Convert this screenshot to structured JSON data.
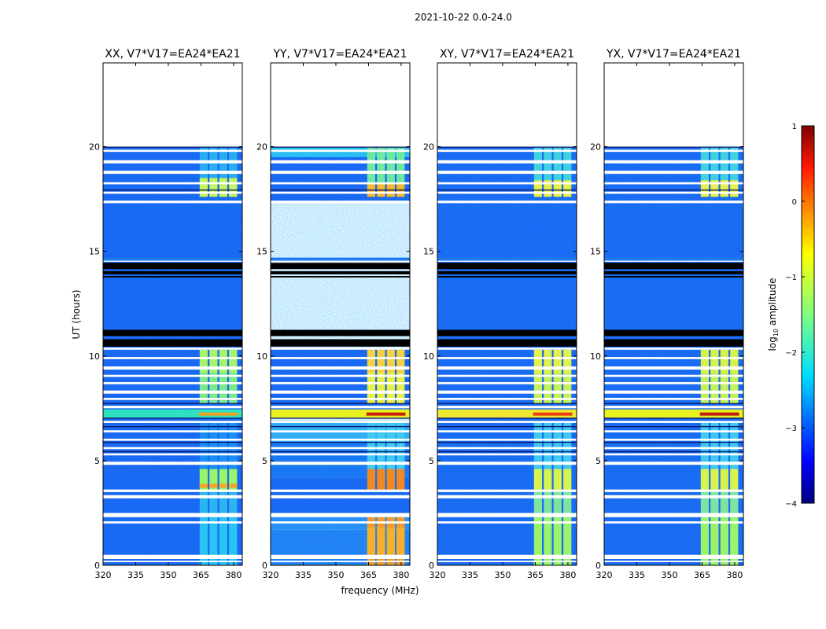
{
  "chart_data": {
    "type": "heatmap",
    "suptitle": "2021-10-22 0.0-24.0",
    "xlabel": "frequency (MHz)",
    "ylabel": "UT (hours)",
    "xlim": [
      320,
      384
    ],
    "ylim": [
      0,
      24
    ],
    "x_ticks": [
      320,
      335,
      350,
      365,
      380
    ],
    "y_ticks": [
      0,
      5,
      10,
      15,
      20
    ],
    "panels": [
      {
        "title": "XX, V7*V17=EA24*EA21",
        "pol": "XX"
      },
      {
        "title": "YY, V7*V17=EA24*EA21",
        "pol": "YY"
      },
      {
        "title": "XY, V7*V17=EA24*EA21",
        "pol": "XY"
      },
      {
        "title": "YX, V7*V17=EA24*EA21",
        "pol": "YX"
      }
    ],
    "colorbar": {
      "label_prefix": "log",
      "label_sub": "10",
      "label_suffix": " amplitude",
      "min": -4,
      "max": 1,
      "ticks": [
        1,
        0,
        -1,
        -2,
        -3,
        -4
      ],
      "colormap": "jet"
    },
    "rfi_band_mhz": [
      364,
      382
    ],
    "data_coverage_hours": [
      [
        0,
        17.4
      ],
      [
        17.4,
        20.0
      ]
    ],
    "no_data_hours": [
      [
        20.0,
        24.0
      ],
      [
        14.7,
        17.3
      ],
      [
        11.2,
        13.9
      ]
    ],
    "flagged_black_hours": [
      [
        14.6,
        14.7
      ],
      [
        13.8,
        13.9
      ],
      [
        10.6,
        11.2
      ]
    ]
  }
}
